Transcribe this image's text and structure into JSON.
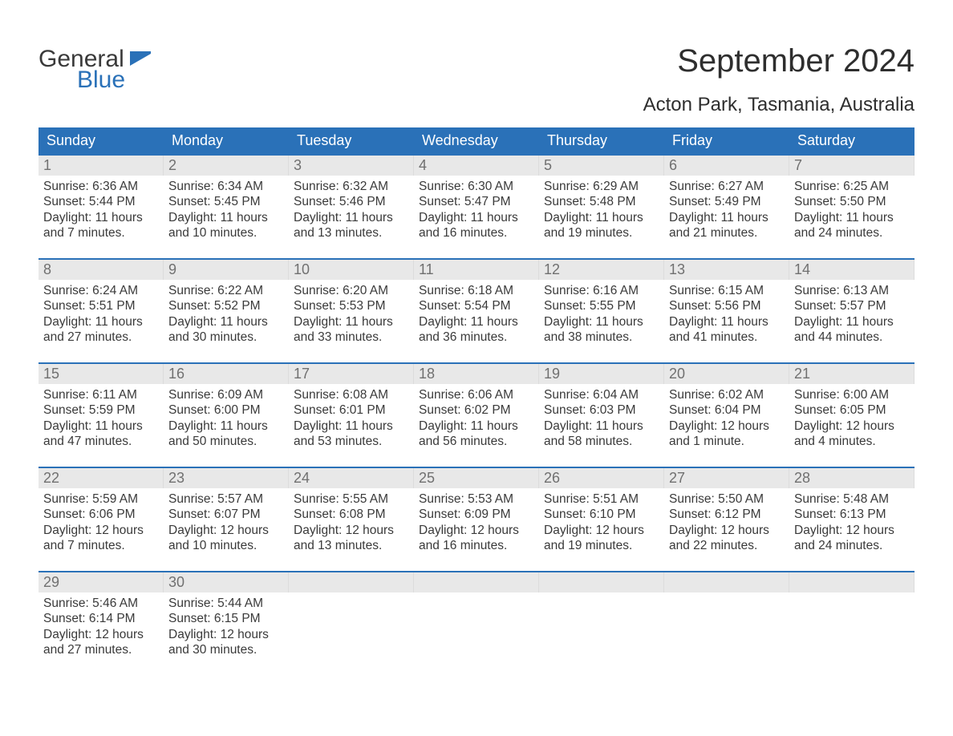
{
  "logo": {
    "general": "General",
    "blue": "Blue",
    "icon_color": "#2a71b8",
    "general_color": "#3a3a3a",
    "blue_color": "#2a71b8"
  },
  "header": {
    "month_title": "September 2024",
    "location": "Acton Park, Tasmania, Australia"
  },
  "style": {
    "header_bg": "#2a71b8",
    "header_text": "#ffffff",
    "daynum_bg": "#e8e8e8",
    "daynum_text": "#707070",
    "body_text": "#3a3a3a",
    "week_border": "#2a71b8",
    "page_bg": "#ffffff",
    "font_family": "Arial",
    "month_title_fontsize": 40,
    "location_fontsize": 24,
    "weekday_fontsize": 18,
    "daynum_fontsize": 18,
    "daybody_fontsize": 15.5
  },
  "weekdays": [
    "Sunday",
    "Monday",
    "Tuesday",
    "Wednesday",
    "Thursday",
    "Friday",
    "Saturday"
  ],
  "calendar": {
    "type": "table",
    "columns": 7,
    "rows": 5,
    "weeks": [
      [
        {
          "day": "1",
          "sunrise": "Sunrise: 6:36 AM",
          "sunset": "Sunset: 5:44 PM",
          "daylight1": "Daylight: 11 hours",
          "daylight2": "and 7 minutes."
        },
        {
          "day": "2",
          "sunrise": "Sunrise: 6:34 AM",
          "sunset": "Sunset: 5:45 PM",
          "daylight1": "Daylight: 11 hours",
          "daylight2": "and 10 minutes."
        },
        {
          "day": "3",
          "sunrise": "Sunrise: 6:32 AM",
          "sunset": "Sunset: 5:46 PM",
          "daylight1": "Daylight: 11 hours",
          "daylight2": "and 13 minutes."
        },
        {
          "day": "4",
          "sunrise": "Sunrise: 6:30 AM",
          "sunset": "Sunset: 5:47 PM",
          "daylight1": "Daylight: 11 hours",
          "daylight2": "and 16 minutes."
        },
        {
          "day": "5",
          "sunrise": "Sunrise: 6:29 AM",
          "sunset": "Sunset: 5:48 PM",
          "daylight1": "Daylight: 11 hours",
          "daylight2": "and 19 minutes."
        },
        {
          "day": "6",
          "sunrise": "Sunrise: 6:27 AM",
          "sunset": "Sunset: 5:49 PM",
          "daylight1": "Daylight: 11 hours",
          "daylight2": "and 21 minutes."
        },
        {
          "day": "7",
          "sunrise": "Sunrise: 6:25 AM",
          "sunset": "Sunset: 5:50 PM",
          "daylight1": "Daylight: 11 hours",
          "daylight2": "and 24 minutes."
        }
      ],
      [
        {
          "day": "8",
          "sunrise": "Sunrise: 6:24 AM",
          "sunset": "Sunset: 5:51 PM",
          "daylight1": "Daylight: 11 hours",
          "daylight2": "and 27 minutes."
        },
        {
          "day": "9",
          "sunrise": "Sunrise: 6:22 AM",
          "sunset": "Sunset: 5:52 PM",
          "daylight1": "Daylight: 11 hours",
          "daylight2": "and 30 minutes."
        },
        {
          "day": "10",
          "sunrise": "Sunrise: 6:20 AM",
          "sunset": "Sunset: 5:53 PM",
          "daylight1": "Daylight: 11 hours",
          "daylight2": "and 33 minutes."
        },
        {
          "day": "11",
          "sunrise": "Sunrise: 6:18 AM",
          "sunset": "Sunset: 5:54 PM",
          "daylight1": "Daylight: 11 hours",
          "daylight2": "and 36 minutes."
        },
        {
          "day": "12",
          "sunrise": "Sunrise: 6:16 AM",
          "sunset": "Sunset: 5:55 PM",
          "daylight1": "Daylight: 11 hours",
          "daylight2": "and 38 minutes."
        },
        {
          "day": "13",
          "sunrise": "Sunrise: 6:15 AM",
          "sunset": "Sunset: 5:56 PM",
          "daylight1": "Daylight: 11 hours",
          "daylight2": "and 41 minutes."
        },
        {
          "day": "14",
          "sunrise": "Sunrise: 6:13 AM",
          "sunset": "Sunset: 5:57 PM",
          "daylight1": "Daylight: 11 hours",
          "daylight2": "and 44 minutes."
        }
      ],
      [
        {
          "day": "15",
          "sunrise": "Sunrise: 6:11 AM",
          "sunset": "Sunset: 5:59 PM",
          "daylight1": "Daylight: 11 hours",
          "daylight2": "and 47 minutes."
        },
        {
          "day": "16",
          "sunrise": "Sunrise: 6:09 AM",
          "sunset": "Sunset: 6:00 PM",
          "daylight1": "Daylight: 11 hours",
          "daylight2": "and 50 minutes."
        },
        {
          "day": "17",
          "sunrise": "Sunrise: 6:08 AM",
          "sunset": "Sunset: 6:01 PM",
          "daylight1": "Daylight: 11 hours",
          "daylight2": "and 53 minutes."
        },
        {
          "day": "18",
          "sunrise": "Sunrise: 6:06 AM",
          "sunset": "Sunset: 6:02 PM",
          "daylight1": "Daylight: 11 hours",
          "daylight2": "and 56 minutes."
        },
        {
          "day": "19",
          "sunrise": "Sunrise: 6:04 AM",
          "sunset": "Sunset: 6:03 PM",
          "daylight1": "Daylight: 11 hours",
          "daylight2": "and 58 minutes."
        },
        {
          "day": "20",
          "sunrise": "Sunrise: 6:02 AM",
          "sunset": "Sunset: 6:04 PM",
          "daylight1": "Daylight: 12 hours",
          "daylight2": "and 1 minute."
        },
        {
          "day": "21",
          "sunrise": "Sunrise: 6:00 AM",
          "sunset": "Sunset: 6:05 PM",
          "daylight1": "Daylight: 12 hours",
          "daylight2": "and 4 minutes."
        }
      ],
      [
        {
          "day": "22",
          "sunrise": "Sunrise: 5:59 AM",
          "sunset": "Sunset: 6:06 PM",
          "daylight1": "Daylight: 12 hours",
          "daylight2": "and 7 minutes."
        },
        {
          "day": "23",
          "sunrise": "Sunrise: 5:57 AM",
          "sunset": "Sunset: 6:07 PM",
          "daylight1": "Daylight: 12 hours",
          "daylight2": "and 10 minutes."
        },
        {
          "day": "24",
          "sunrise": "Sunrise: 5:55 AM",
          "sunset": "Sunset: 6:08 PM",
          "daylight1": "Daylight: 12 hours",
          "daylight2": "and 13 minutes."
        },
        {
          "day": "25",
          "sunrise": "Sunrise: 5:53 AM",
          "sunset": "Sunset: 6:09 PM",
          "daylight1": "Daylight: 12 hours",
          "daylight2": "and 16 minutes."
        },
        {
          "day": "26",
          "sunrise": "Sunrise: 5:51 AM",
          "sunset": "Sunset: 6:10 PM",
          "daylight1": "Daylight: 12 hours",
          "daylight2": "and 19 minutes."
        },
        {
          "day": "27",
          "sunrise": "Sunrise: 5:50 AM",
          "sunset": "Sunset: 6:12 PM",
          "daylight1": "Daylight: 12 hours",
          "daylight2": "and 22 minutes."
        },
        {
          "day": "28",
          "sunrise": "Sunrise: 5:48 AM",
          "sunset": "Sunset: 6:13 PM",
          "daylight1": "Daylight: 12 hours",
          "daylight2": "and 24 minutes."
        }
      ],
      [
        {
          "day": "29",
          "sunrise": "Sunrise: 5:46 AM",
          "sunset": "Sunset: 6:14 PM",
          "daylight1": "Daylight: 12 hours",
          "daylight2": "and 27 minutes."
        },
        {
          "day": "30",
          "sunrise": "Sunrise: 5:44 AM",
          "sunset": "Sunset: 6:15 PM",
          "daylight1": "Daylight: 12 hours",
          "daylight2": "and 30 minutes."
        },
        {
          "empty": true
        },
        {
          "empty": true
        },
        {
          "empty": true
        },
        {
          "empty": true
        },
        {
          "empty": true
        }
      ]
    ]
  }
}
